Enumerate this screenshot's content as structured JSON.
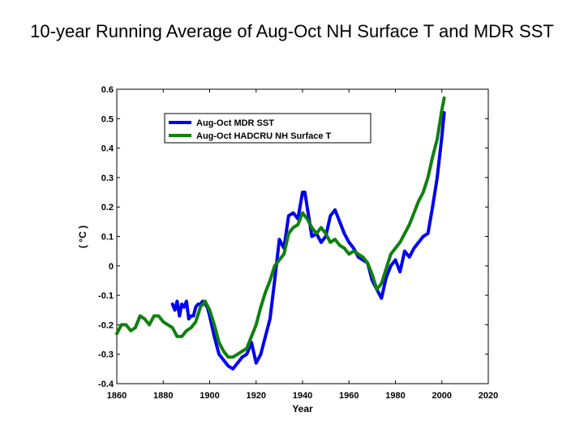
{
  "page": {
    "title": "10-year Running Average of Aug-Oct NH Surface T and MDR SST"
  },
  "chart_data": {
    "type": "line",
    "title": "10-year Running Average of Aug-Oct NH Surface T and MDR SST",
    "xlabel": "Year",
    "ylabel": "( °C )",
    "xlim": [
      1860,
      2020
    ],
    "ylim": [
      -0.4,
      0.6
    ],
    "xticks": [
      1860,
      1880,
      1900,
      1920,
      1940,
      1960,
      1980,
      2000,
      2020
    ],
    "yticks": [
      -0.4,
      -0.3,
      -0.2,
      -0.1,
      0,
      0.1,
      0.2,
      0.3,
      0.4,
      0.5,
      0.6
    ],
    "ytick_labels": [
      "-0.4",
      "-0.3",
      "-0.2",
      "-0.1",
      "0",
      "0.1",
      "0.2",
      "0.3",
      "0.4",
      "0.5",
      "0.6"
    ],
    "legend_position": "top-right",
    "series": [
      {
        "name": "Aug-Oct MDR SST",
        "color": "#0000ee",
        "x": [
          1884,
          1885,
          1886,
          1887,
          1888,
          1889,
          1890,
          1891,
          1892,
          1893,
          1894,
          1895,
          1896,
          1897,
          1898,
          1899,
          1900,
          1902,
          1904,
          1906,
          1908,
          1910,
          1912,
          1914,
          1916,
          1918,
          1920,
          1922,
          1924,
          1926,
          1928,
          1930,
          1932,
          1934,
          1936,
          1938,
          1940,
          1941,
          1942,
          1944,
          1946,
          1948,
          1950,
          1952,
          1954,
          1956,
          1958,
          1960,
          1962,
          1964,
          1966,
          1968,
          1970,
          1972,
          1974,
          1976,
          1978,
          1980,
          1982,
          1984,
          1986,
          1988,
          1990,
          1992,
          1994,
          1996,
          1998,
          2000,
          2001
        ],
        "values": [
          -0.13,
          -0.15,
          -0.12,
          -0.17,
          -0.13,
          -0.14,
          -0.12,
          -0.18,
          -0.17,
          -0.17,
          -0.14,
          -0.13,
          -0.13,
          -0.12,
          -0.13,
          -0.14,
          -0.17,
          -0.24,
          -0.3,
          -0.32,
          -0.34,
          -0.35,
          -0.33,
          -0.31,
          -0.3,
          -0.26,
          -0.33,
          -0.3,
          -0.24,
          -0.18,
          -0.05,
          0.09,
          0.06,
          0.17,
          0.18,
          0.16,
          0.25,
          0.25,
          0.2,
          0.1,
          0.11,
          0.08,
          0.1,
          0.17,
          0.19,
          0.15,
          0.11,
          0.08,
          0.06,
          0.03,
          0.02,
          0.01,
          -0.05,
          -0.08,
          -0.11,
          -0.04,
          0.0,
          0.02,
          -0.02,
          0.05,
          0.03,
          0.06,
          0.08,
          0.1,
          0.11,
          0.2,
          0.3,
          0.44,
          0.52
        ]
      },
      {
        "name": "Aug-Oct HADCRU NH Surface T",
        "color": "#108010",
        "x": [
          1860,
          1862,
          1864,
          1866,
          1868,
          1870,
          1872,
          1874,
          1876,
          1878,
          1880,
          1882,
          1884,
          1886,
          1888,
          1890,
          1892,
          1894,
          1896,
          1898,
          1900,
          1902,
          1904,
          1906,
          1908,
          1910,
          1912,
          1914,
          1916,
          1918,
          1920,
          1922,
          1924,
          1926,
          1928,
          1930,
          1932,
          1934,
          1936,
          1938,
          1940,
          1942,
          1944,
          1946,
          1948,
          1950,
          1952,
          1954,
          1956,
          1958,
          1960,
          1962,
          1964,
          1966,
          1968,
          1970,
          1972,
          1974,
          1976,
          1978,
          1980,
          1982,
          1984,
          1986,
          1988,
          1990,
          1992,
          1994,
          1996,
          1998,
          2000,
          2001
        ],
        "values": [
          -0.23,
          -0.2,
          -0.2,
          -0.22,
          -0.21,
          -0.17,
          -0.18,
          -0.2,
          -0.17,
          -0.17,
          -0.19,
          -0.2,
          -0.21,
          -0.24,
          -0.24,
          -0.22,
          -0.21,
          -0.19,
          -0.14,
          -0.12,
          -0.15,
          -0.2,
          -0.26,
          -0.29,
          -0.31,
          -0.31,
          -0.3,
          -0.29,
          -0.28,
          -0.24,
          -0.2,
          -0.14,
          -0.09,
          -0.05,
          0.0,
          0.02,
          0.04,
          0.11,
          0.13,
          0.14,
          0.18,
          0.16,
          0.13,
          0.11,
          0.13,
          0.11,
          0.08,
          0.09,
          0.07,
          0.06,
          0.04,
          0.05,
          0.04,
          0.03,
          0.01,
          -0.03,
          -0.08,
          -0.06,
          -0.01,
          0.04,
          0.06,
          0.08,
          0.11,
          0.14,
          0.18,
          0.22,
          0.25,
          0.3,
          0.37,
          0.43,
          0.53,
          0.57
        ]
      }
    ]
  }
}
